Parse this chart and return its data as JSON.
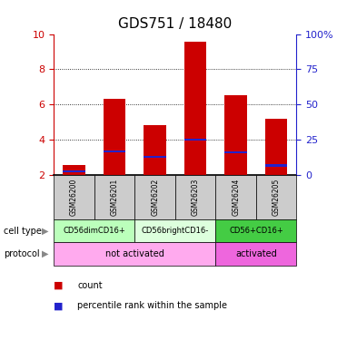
{
  "title": "GDS751 / 18480",
  "samples": [
    "GSM26200",
    "GSM26201",
    "GSM26202",
    "GSM26203",
    "GSM26204",
    "GSM26205"
  ],
  "count_values": [
    2.6,
    6.35,
    4.85,
    9.55,
    6.55,
    5.2
  ],
  "percentile_values": [
    2.2,
    3.35,
    3.05,
    4.0,
    3.3,
    2.55
  ],
  "bar_bottom": 2.0,
  "ylim": [
    2.0,
    10.0
  ],
  "yticks_left": [
    2,
    4,
    6,
    8,
    10
  ],
  "ytick_labels_left": [
    "2",
    "4",
    "6",
    "8",
    "10"
  ],
  "yticks_right_vals": [
    2.0,
    4.0,
    6.0,
    8.0,
    10.0
  ],
  "ytick_labels_right": [
    "0",
    "25",
    "50",
    "75",
    "100%"
  ],
  "cell_types": [
    {
      "label": "CD56dimCD16+",
      "span": [
        0,
        2
      ],
      "color": "#bbffbb"
    },
    {
      "label": "CD56brightCD16-",
      "span": [
        2,
        4
      ],
      "color": "#ddffdd"
    },
    {
      "label": "CD56+CD16+",
      "span": [
        4,
        6
      ],
      "color": "#44cc44"
    }
  ],
  "protocols": [
    {
      "label": "not activated",
      "span": [
        0,
        4
      ],
      "color": "#ffaaee"
    },
    {
      "label": "activated",
      "span": [
        4,
        6
      ],
      "color": "#ee66dd"
    }
  ],
  "bar_color": "#cc0000",
  "blue_color": "#2222cc",
  "bg_color": "#cccccc",
  "left_tick_color": "#cc0000",
  "right_tick_color": "#2222cc",
  "bar_width": 0.55,
  "blue_bar_height": 0.12,
  "title_fontsize": 11,
  "label_fontsize": 7,
  "sample_fontsize": 5.5,
  "celltype_fontsize": 6,
  "protocol_fontsize": 7,
  "legend_count_label": "count",
  "legend_pct_label": "percentile rank within the sample"
}
